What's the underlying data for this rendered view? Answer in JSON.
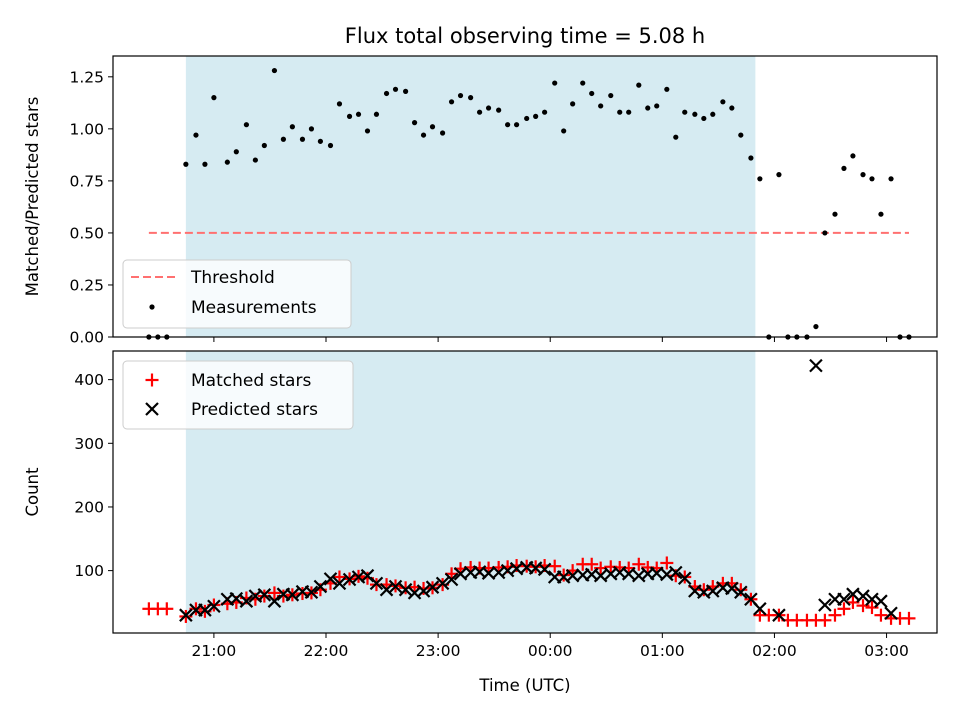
{
  "chart_data": [
    {
      "type": "scatter",
      "title": "Flux total observing time = 5.08 h",
      "ylabel": "Matched/Predicted stars",
      "ylim": [
        0,
        1.35
      ],
      "yticks": [
        0,
        0.25,
        0.5,
        0.75,
        1.0,
        1.25
      ],
      "ytick_labels": [
        "0.00",
        "0.25",
        "0.50",
        "0.75",
        "1.00",
        "1.25"
      ],
      "xticks_hours": [
        21,
        22,
        23,
        24,
        25,
        26,
        27
      ],
      "legend": {
        "position": "lower-left",
        "entries": [
          "Threshold",
          "Measurements"
        ]
      },
      "shaded_span_hours": [
        20.75,
        25.83
      ],
      "shade_color": "#add8e6",
      "threshold": {
        "name": "Threshold",
        "y": 0.5,
        "x_range_hours": [
          20.42,
          27.2
        ],
        "color": "#ff7070"
      },
      "series": [
        {
          "name": "Measurements",
          "color": "#000000",
          "points": [
            [
              20.42,
              0.0
            ],
            [
              20.5,
              0.0
            ],
            [
              20.58,
              0.0
            ],
            [
              20.75,
              0.83
            ],
            [
              20.84,
              0.97
            ],
            [
              20.92,
              0.83
            ],
            [
              21.0,
              1.15
            ],
            [
              21.12,
              0.84
            ],
            [
              21.2,
              0.89
            ],
            [
              21.29,
              1.02
            ],
            [
              21.37,
              0.85
            ],
            [
              21.45,
              0.92
            ],
            [
              21.54,
              1.28
            ],
            [
              21.62,
              0.95
            ],
            [
              21.7,
              1.01
            ],
            [
              21.79,
              0.95
            ],
            [
              21.87,
              1.0
            ],
            [
              21.95,
              0.94
            ],
            [
              22.04,
              0.92
            ],
            [
              22.12,
              1.12
            ],
            [
              22.21,
              1.06
            ],
            [
              22.29,
              1.07
            ],
            [
              22.37,
              0.99
            ],
            [
              22.45,
              1.07
            ],
            [
              22.54,
              1.17
            ],
            [
              22.62,
              1.19
            ],
            [
              22.71,
              1.18
            ],
            [
              22.79,
              1.03
            ],
            [
              22.87,
              0.97
            ],
            [
              22.95,
              1.01
            ],
            [
              23.04,
              0.98
            ],
            [
              23.12,
              1.13
            ],
            [
              23.2,
              1.16
            ],
            [
              23.29,
              1.15
            ],
            [
              23.37,
              1.08
            ],
            [
              23.45,
              1.1
            ],
            [
              23.54,
              1.09
            ],
            [
              23.62,
              1.02
            ],
            [
              23.7,
              1.02
            ],
            [
              23.79,
              1.05
            ],
            [
              23.87,
              1.06
            ],
            [
              23.95,
              1.08
            ],
            [
              24.04,
              1.22
            ],
            [
              24.12,
              0.99
            ],
            [
              24.2,
              1.12
            ],
            [
              24.29,
              1.22
            ],
            [
              24.37,
              1.17
            ],
            [
              24.45,
              1.11
            ],
            [
              24.54,
              1.16
            ],
            [
              24.62,
              1.08
            ],
            [
              24.7,
              1.08
            ],
            [
              24.79,
              1.21
            ],
            [
              24.87,
              1.1
            ],
            [
              24.95,
              1.11
            ],
            [
              25.04,
              1.19
            ],
            [
              25.12,
              0.96
            ],
            [
              25.2,
              1.08
            ],
            [
              25.29,
              1.07
            ],
            [
              25.37,
              1.05
            ],
            [
              25.45,
              1.07
            ],
            [
              25.54,
              1.13
            ],
            [
              25.62,
              1.1
            ],
            [
              25.7,
              0.97
            ],
            [
              25.79,
              0.86
            ],
            [
              25.87,
              0.76
            ],
            [
              25.95,
              0.0
            ],
            [
              26.04,
              0.78
            ],
            [
              26.12,
              0.0
            ],
            [
              26.2,
              0.0
            ],
            [
              26.29,
              0.0
            ],
            [
              26.37,
              0.05
            ],
            [
              26.45,
              0.5
            ],
            [
              26.54,
              0.59
            ],
            [
              26.62,
              0.81
            ],
            [
              26.7,
              0.87
            ],
            [
              26.79,
              0.78
            ],
            [
              26.87,
              0.76
            ],
            [
              26.95,
              0.59
            ],
            [
              27.04,
              0.76
            ],
            [
              27.12,
              0.0
            ],
            [
              27.2,
              0.0
            ]
          ]
        }
      ]
    },
    {
      "type": "scatter",
      "xlabel": "Time (UTC)",
      "ylabel": "Count",
      "ylim": [
        2,
        445
      ],
      "yticks": [
        100,
        200,
        300,
        400
      ],
      "ytick_labels": [
        "100",
        "200",
        "300",
        "400"
      ],
      "xticks_hours": [
        21,
        22,
        23,
        24,
        25,
        26,
        27
      ],
      "xtick_labels": [
        "21:00",
        "22:00",
        "23:00",
        "00:00",
        "01:00",
        "02:00",
        "03:00"
      ],
      "legend": {
        "position": "top-left",
        "entries": [
          "Matched stars",
          "Predicted stars"
        ]
      },
      "shaded_span_hours": [
        20.75,
        25.83
      ],
      "shade_color": "#add8e6",
      "series": [
        {
          "name": "Matched stars",
          "marker": "plus",
          "color": "#ff0000",
          "points": [
            [
              20.42,
              40
            ],
            [
              20.5,
              40
            ],
            [
              20.58,
              40
            ],
            [
              20.75,
              28
            ],
            [
              20.84,
              40
            ],
            [
              20.92,
              36
            ],
            [
              21.0,
              46
            ],
            [
              21.12,
              48
            ],
            [
              21.2,
              50
            ],
            [
              21.29,
              57
            ],
            [
              21.37,
              55
            ],
            [
              21.45,
              60
            ],
            [
              21.54,
              65
            ],
            [
              21.62,
              60
            ],
            [
              21.7,
              62
            ],
            [
              21.79,
              64
            ],
            [
              21.87,
              65
            ],
            [
              21.95,
              70
            ],
            [
              22.04,
              80
            ],
            [
              22.12,
              90
            ],
            [
              22.21,
              87
            ],
            [
              22.29,
              91
            ],
            [
              22.37,
              88
            ],
            [
              22.45,
              78
            ],
            [
              22.54,
              78
            ],
            [
              22.62,
              76
            ],
            [
              22.71,
              73
            ],
            [
              22.79,
              74
            ],
            [
              22.87,
              72
            ],
            [
              22.95,
              73
            ],
            [
              23.04,
              78
            ],
            [
              23.12,
              95
            ],
            [
              23.2,
              103
            ],
            [
              23.29,
              105
            ],
            [
              23.37,
              104
            ],
            [
              23.45,
              104
            ],
            [
              23.54,
              105
            ],
            [
              23.62,
              106
            ],
            [
              23.7,
              108
            ],
            [
              23.79,
              107
            ],
            [
              23.87,
              106
            ],
            [
              23.95,
              108
            ],
            [
              24.04,
              107
            ],
            [
              24.12,
              93
            ],
            [
              24.2,
              100
            ],
            [
              24.29,
              110
            ],
            [
              24.37,
              110
            ],
            [
              24.45,
              104
            ],
            [
              24.54,
              106
            ],
            [
              24.62,
              105
            ],
            [
              24.7,
              104
            ],
            [
              24.79,
              110
            ],
            [
              24.87,
              105
            ],
            [
              24.95,
              104
            ],
            [
              25.04,
              112
            ],
            [
              25.12,
              92
            ],
            [
              25.2,
              90
            ],
            [
              25.29,
              75
            ],
            [
              25.37,
              70
            ],
            [
              25.45,
              75
            ],
            [
              25.54,
              80
            ],
            [
              25.62,
              80
            ],
            [
              25.7,
              70
            ],
            [
              25.79,
              55
            ],
            [
              25.87,
              30
            ],
            [
              25.95,
              30
            ],
            [
              26.04,
              30
            ],
            [
              26.12,
              22
            ],
            [
              26.2,
              22
            ],
            [
              26.29,
              22
            ],
            [
              26.37,
              22
            ],
            [
              26.45,
              22
            ],
            [
              26.54,
              30
            ],
            [
              26.62,
              40
            ],
            [
              26.7,
              50
            ],
            [
              26.79,
              45
            ],
            [
              26.87,
              42
            ],
            [
              26.95,
              30
            ],
            [
              27.04,
              25
            ],
            [
              27.12,
              25
            ],
            [
              27.2,
              25
            ]
          ]
        },
        {
          "name": "Predicted stars",
          "marker": "cross",
          "color": "#000000",
          "points": [
            [
              20.75,
              30
            ],
            [
              20.84,
              38
            ],
            [
              20.92,
              38
            ],
            [
              21.0,
              44
            ],
            [
              21.12,
              55
            ],
            [
              21.2,
              56
            ],
            [
              21.29,
              52
            ],
            [
              21.37,
              60
            ],
            [
              21.45,
              62
            ],
            [
              21.54,
              52
            ],
            [
              21.62,
              63
            ],
            [
              21.7,
              62
            ],
            [
              21.79,
              67
            ],
            [
              21.87,
              66
            ],
            [
              21.95,
              75
            ],
            [
              22.04,
              87
            ],
            [
              22.12,
              80
            ],
            [
              22.21,
              86
            ],
            [
              22.29,
              90
            ],
            [
              22.37,
              92
            ],
            [
              22.45,
              80
            ],
            [
              22.54,
              70
            ],
            [
              22.62,
              75
            ],
            [
              22.71,
              70
            ],
            [
              22.79,
              65
            ],
            [
              22.87,
              68
            ],
            [
              22.95,
              74
            ],
            [
              23.04,
              80
            ],
            [
              23.12,
              86
            ],
            [
              23.2,
              95
            ],
            [
              23.29,
              97
            ],
            [
              23.37,
              98
            ],
            [
              23.45,
              96
            ],
            [
              23.54,
              97
            ],
            [
              23.62,
              100
            ],
            [
              23.7,
              103
            ],
            [
              23.79,
              105
            ],
            [
              23.87,
              104
            ],
            [
              23.95,
              102
            ],
            [
              24.04,
              90
            ],
            [
              24.12,
              90
            ],
            [
              24.2,
              92
            ],
            [
              24.29,
              93
            ],
            [
              24.37,
              94
            ],
            [
              24.45,
              92
            ],
            [
              24.54,
              95
            ],
            [
              24.62,
              97
            ],
            [
              24.7,
              95
            ],
            [
              24.79,
              92
            ],
            [
              24.87,
              95
            ],
            [
              24.95,
              96
            ],
            [
              25.04,
              94
            ],
            [
              25.12,
              97
            ],
            [
              25.2,
              88
            ],
            [
              25.29,
              68
            ],
            [
              25.37,
              66
            ],
            [
              25.45,
              68
            ],
            [
              25.54,
              73
            ],
            [
              25.62,
              72
            ],
            [
              25.7,
              66
            ],
            [
              25.79,
              55
            ],
            [
              25.87,
              40
            ],
            [
              26.04,
              30
            ],
            [
              26.37,
              422
            ],
            [
              26.45,
              46
            ],
            [
              26.54,
              55
            ],
            [
              26.62,
              55
            ],
            [
              26.7,
              63
            ],
            [
              26.79,
              60
            ],
            [
              26.87,
              55
            ],
            [
              26.95,
              52
            ],
            [
              27.04,
              33
            ]
          ]
        }
      ]
    }
  ]
}
